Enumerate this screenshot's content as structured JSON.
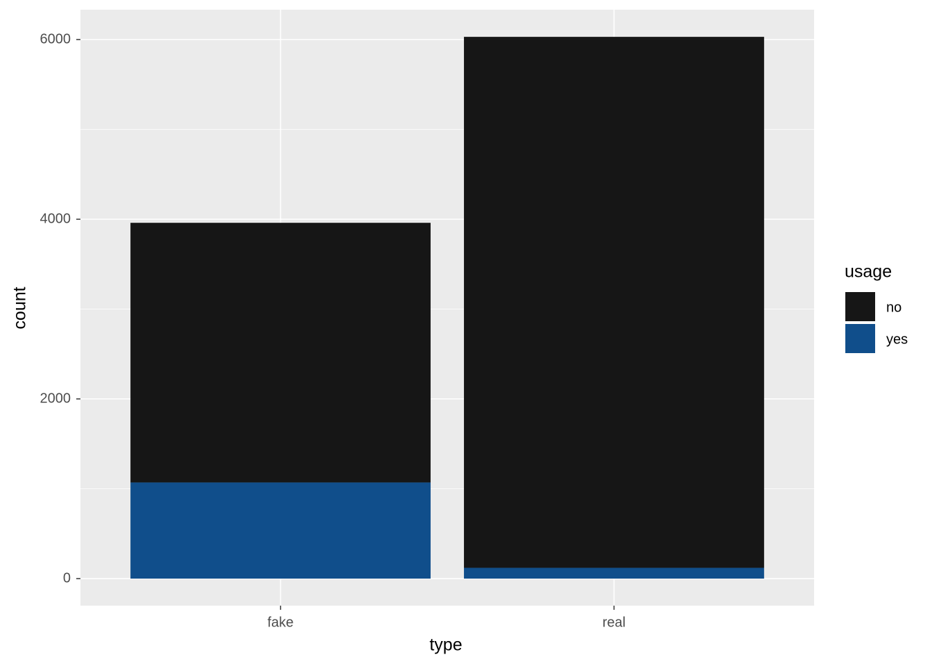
{
  "chart_data": {
    "type": "stacked_bar",
    "x_label": "type",
    "y_label": "count",
    "categories": [
      "fake",
      "real"
    ],
    "series": [
      {
        "name": "no",
        "color": "#161616",
        "values": [
          2890,
          5910
        ]
      },
      {
        "name": "yes",
        "color": "#104e8b",
        "values": [
          1070,
          120
        ]
      }
    ],
    "legend_title": "usage",
    "legend": "right",
    "ylim": [
      -301,
      6332
    ],
    "yticks": [
      0,
      2000,
      4000,
      6000
    ],
    "y_minor_grid": [
      1000,
      3000,
      5000
    ],
    "grid": true
  }
}
